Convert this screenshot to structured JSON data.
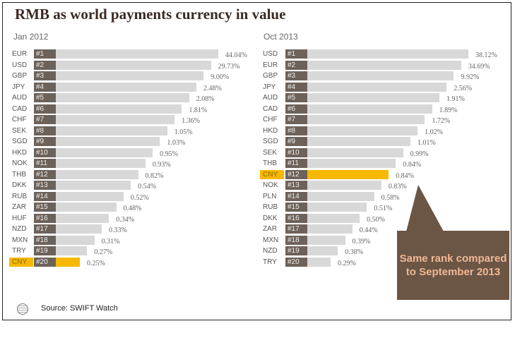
{
  "chart_data": [
    {
      "type": "bar",
      "title": "RMB as world payments currency in value",
      "subtitle": "Jan 2012",
      "categories": [
        "EUR",
        "USD",
        "GBP",
        "JPY",
        "AUD",
        "CAD",
        "CHF",
        "SEK",
        "SGD",
        "HKD",
        "NOK",
        "THB",
        "DKK",
        "RUB",
        "ZAR",
        "HUF",
        "NZD",
        "MXN",
        "TRY",
        "CNY"
      ],
      "ranks": [
        "#1",
        "#2",
        "#3",
        "#4",
        "#5",
        "#6",
        "#7",
        "#8",
        "#9",
        "#10",
        "#11",
        "#12",
        "#13",
        "#14",
        "#15",
        "#16",
        "#17",
        "#18",
        "#19",
        "#20"
      ],
      "values": [
        "44.04%",
        "29.73%",
        "9.00%",
        "2.48%",
        "2.08%",
        "1.81%",
        "1.36%",
        "1.05%",
        "1.03%",
        "0.95%",
        "0.93%",
        "0.82%",
        "0.54%",
        "0.52%",
        "0.48%",
        "0.34%",
        "0.33%",
        "0.31%",
        "0.27%",
        "0.25%"
      ],
      "highlight": "CNY"
    },
    {
      "type": "bar",
      "subtitle": "Oct 2013",
      "categories": [
        "USD",
        "EUR",
        "GBP",
        "JPY",
        "AUD",
        "CAD",
        "CHF",
        "HKD",
        "SGD",
        "SEK",
        "THB",
        "CNY",
        "NOK",
        "PLN",
        "RUB",
        "DKK",
        "ZAR",
        "MXN",
        "NZD",
        "TRY"
      ],
      "ranks": [
        "#1",
        "#2",
        "#3",
        "#4",
        "#5",
        "#6",
        "#7",
        "#8",
        "#9",
        "#10",
        "#11",
        "#12",
        "#13",
        "#14",
        "#15",
        "#16",
        "#17",
        "#18",
        "#19",
        "#20"
      ],
      "values": [
        "38.12%",
        "34.69%",
        "9.92%",
        "2.56%",
        "1.91%",
        "1.89%",
        "1.72%",
        "1.02%",
        "1.01%",
        "0.99%",
        "0.84%",
        "0.84%",
        "0.83%",
        "0.58%",
        "0.51%",
        "0.50%",
        "0.44%",
        "0.39%",
        "0.38%",
        "0.29%"
      ],
      "highlight": "CNY"
    }
  ],
  "colors": {
    "bar": "#d8d8d8",
    "rank_box": "#6d625a",
    "highlight": "#f6b800",
    "callout": "#6b5545",
    "callout_text": "#f0b894"
  },
  "title": "RMB as world payments currency in value",
  "left_subtitle": "Jan 2012",
  "right_subtitle": "Oct 2013",
  "callout": "Same rank compared to September 2013",
  "source": "Source: SWIFT Watch",
  "source_icon": "swift-logo-icon"
}
